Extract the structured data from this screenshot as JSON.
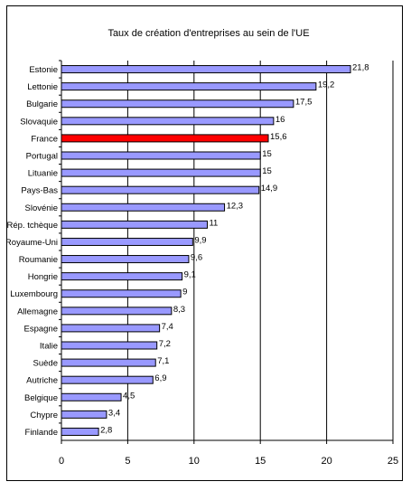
{
  "chart_data": {
    "type": "bar",
    "orientation": "horizontal",
    "title": "Taux de création d'entreprises au sein de l'UE",
    "categories": [
      "Estonie",
      "Lettonie",
      "Bulgarie",
      "Slovaquie",
      "France",
      "Portugal",
      "Lituanie",
      "Pays-Bas",
      "Slovénie",
      "Rép. tchèque",
      "Royaume-Uni",
      "Roumanie",
      "Hongrie",
      "Luxembourg",
      "Allemagne",
      "Espagne",
      "Italie",
      "Suède",
      "Autriche",
      "Belgique",
      "Chypre",
      "Finlande"
    ],
    "values": [
      21.8,
      19.2,
      17.5,
      16,
      15.6,
      15,
      15,
      14.9,
      12.3,
      11,
      9.9,
      9.6,
      9.1,
      9,
      8.3,
      7.4,
      7.2,
      7.1,
      6.9,
      4.5,
      3.4,
      2.8
    ],
    "value_labels": [
      "21,8",
      "19,2",
      "17,5",
      "16",
      "15,6",
      "15",
      "15",
      "14,9",
      "12,3",
      "11",
      "9,9",
      "9,6",
      "9,1",
      "9",
      "8,3",
      "7,4",
      "7,2",
      "7,1",
      "6,9",
      "4,5",
      "3,4",
      "2,8"
    ],
    "highlight": "France",
    "xlim": [
      0,
      25
    ],
    "xticks": [
      0,
      5,
      10,
      15,
      20,
      25
    ],
    "grid": "vertical",
    "legend": "none",
    "colors": {
      "bar": "#9999ff",
      "highlight": "#ff0000",
      "outline": "#000000",
      "grid": "#000000"
    }
  }
}
